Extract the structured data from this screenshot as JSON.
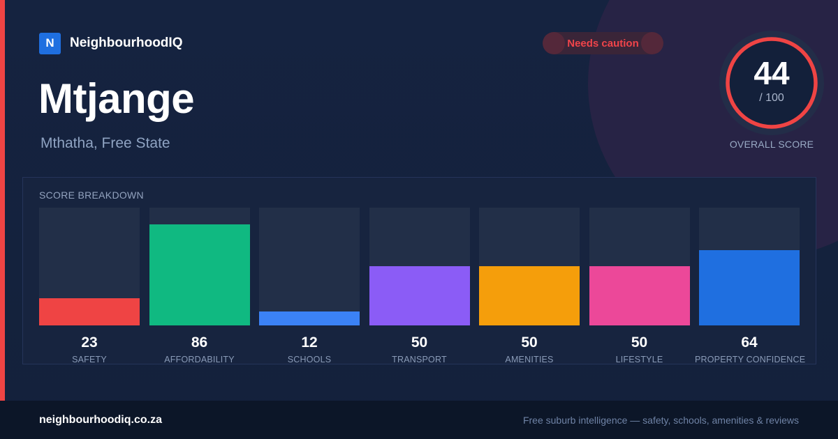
{
  "brand": {
    "logo_letter": "N",
    "name": "NeighbourhoodIQ",
    "brand_color": "#1f6fe0"
  },
  "suburb": {
    "name": "Mtjange",
    "location": "Mthatha, Free State"
  },
  "badge": {
    "label": "Needs caution",
    "color": "#f0444a"
  },
  "overall": {
    "score": "44",
    "out_of": "/ 100",
    "caption": "OVERALL SCORE",
    "ring_color": "#ef4444",
    "score_value": 44
  },
  "breakdown": {
    "title": "SCORE BREAKDOWN",
    "items": [
      {
        "label": "SAFETY",
        "value": 23,
        "display": "23",
        "color": "#ef4444"
      },
      {
        "label": "AFFORDABILITY",
        "value": 86,
        "display": "86",
        "color": "#10b981"
      },
      {
        "label": "SCHOOLS",
        "value": 12,
        "display": "12",
        "color": "#3b82f6"
      },
      {
        "label": "TRANSPORT",
        "value": 50,
        "display": "50",
        "color": "#8b5cf6"
      },
      {
        "label": "AMENITIES",
        "value": 50,
        "display": "50",
        "color": "#f59e0b"
      },
      {
        "label": "LIFESTYLE",
        "value": 50,
        "display": "50",
        "color": "#ec4899"
      },
      {
        "label": "PROPERTY CONFIDENCE",
        "value": 64,
        "display": "64",
        "color": "#1f6fe0"
      }
    ]
  },
  "footer": {
    "domain": "neighbourhoodiq.co.za",
    "tagline": "Free suburb intelligence — safety, schools, amenities & reviews"
  },
  "colors": {
    "accent_strip": "#ef4444",
    "background": "#14203a"
  }
}
